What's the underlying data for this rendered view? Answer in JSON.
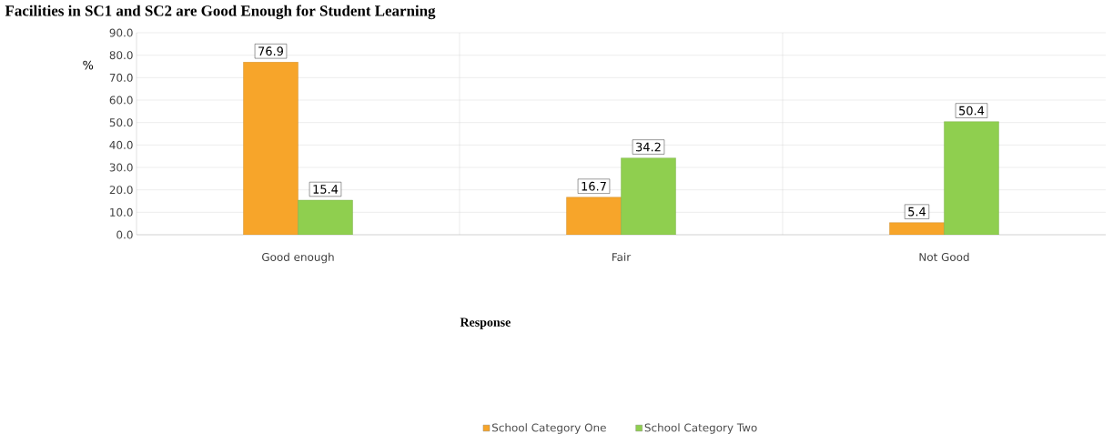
{
  "chart_data": {
    "type": "bar",
    "title": "Facilities in SC1 and SC2 are Good Enough for Student Learning",
    "xlabel": "Response",
    "ylabel": "%",
    "categories": [
      "Good enough",
      "Fair",
      "Not Good"
    ],
    "series": [
      {
        "name": "School Category One",
        "color": "#f7a52a",
        "values": [
          76.9,
          16.7,
          5.4
        ]
      },
      {
        "name": "School Category Two",
        "color": "#8fcf4f",
        "values": [
          15.4,
          34.2,
          50.4
        ]
      }
    ],
    "ylim": [
      0,
      90
    ],
    "yticks": [
      {
        "value": 0,
        "label": "0.0"
      },
      {
        "value": 10,
        "label": "10.0"
      },
      {
        "value": 20,
        "label": "20.0"
      },
      {
        "value": 30,
        "label": "30.0"
      },
      {
        "value": 40,
        "label": "40.0"
      },
      {
        "value": 50,
        "label": "50.0"
      },
      {
        "value": 60,
        "label": "60.0"
      },
      {
        "value": 70,
        "label": "70.0"
      },
      {
        "value": 80,
        "label": "80.0"
      },
      {
        "value": 90,
        "label": "90.0"
      }
    ],
    "data_labels": true,
    "grid": true,
    "legend": "bottom"
  }
}
